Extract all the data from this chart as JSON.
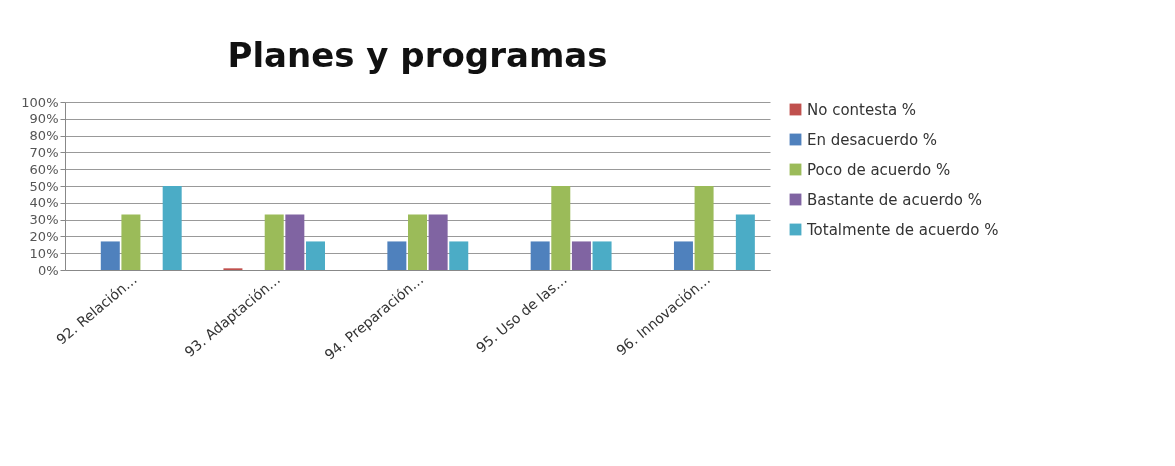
{
  "chart_data": {
    "type": "bar",
    "title": "Planes  y  programas",
    "categories": [
      "92. Relación…",
      "93. Adaptación…",
      "94. Preparación…",
      "95. Uso de las…",
      "96. Innovación…"
    ],
    "series": [
      {
        "name": "No contesta %",
        "color": "#c0504d",
        "values": [
          0,
          1,
          0,
          0,
          0
        ]
      },
      {
        "name": "En desacuerdo %",
        "color": "#4f81bd",
        "values": [
          17,
          0,
          17,
          17,
          17
        ]
      },
      {
        "name": "Poco de acuerdo %",
        "color": "#9bbb59",
        "values": [
          33,
          33,
          33,
          50,
          50
        ]
      },
      {
        "name": "Bastante de acuerdo %",
        "color": "#8064a2",
        "values": [
          0,
          33,
          33,
          17,
          0
        ]
      },
      {
        "name": "Totalmente de acuerdo %",
        "color": "#4bacc6",
        "values": [
          50,
          17,
          17,
          17,
          33
        ]
      }
    ],
    "ylim": [
      0,
      100
    ],
    "yticks": [
      {
        "value": 0,
        "label": "0%"
      },
      {
        "value": 10,
        "label": "10%"
      },
      {
        "value": 20,
        "label": "20%"
      },
      {
        "value": 30,
        "label": "30%"
      },
      {
        "value": 40,
        "label": "40%"
      },
      {
        "value": 50,
        "label": "50%"
      },
      {
        "value": 60,
        "label": "60%"
      },
      {
        "value": 70,
        "label": "70%"
      },
      {
        "value": 80,
        "label": "80%"
      },
      {
        "value": 90,
        "label": "90%"
      },
      {
        "value": 100,
        "label": "100%"
      }
    ],
    "grid": "y",
    "legend": "right"
  }
}
